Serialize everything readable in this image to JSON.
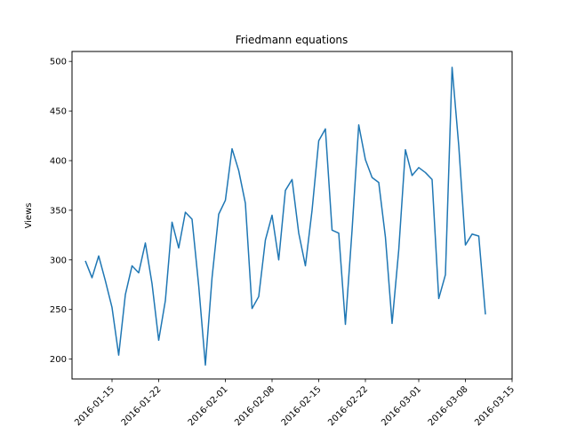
{
  "chart_data": {
    "type": "line",
    "title": "Friedmann equations",
    "xlabel": "",
    "ylabel": "Views",
    "x_start": "2016-01-11",
    "x_end": "2016-03-13",
    "xlim": [
      "2016-01-09",
      "2016-03-15"
    ],
    "ylim": [
      180,
      510
    ],
    "y_ticks": [
      200,
      250,
      300,
      350,
      400,
      450,
      500
    ],
    "x_ticks": [
      "2016-01-15",
      "2016-01-22",
      "2016-02-01",
      "2016-02-08",
      "2016-02-15",
      "2016-02-22",
      "2016-03-01",
      "2016-03-08",
      "2016-03-15"
    ],
    "grid": false,
    "series": [
      {
        "name": "",
        "color": "#1f77b4",
        "values": [
          299,
          282,
          304,
          279,
          252,
          204,
          265,
          294,
          287,
          317,
          276,
          219,
          259,
          338,
          312,
          348,
          341,
          274,
          194,
          282,
          346,
          360,
          412,
          390,
          357,
          251,
          263,
          320,
          345,
          300,
          370,
          381,
          327,
          294,
          350,
          420,
          432,
          330,
          327,
          235,
          330,
          436,
          401,
          383,
          378,
          323,
          236,
          310,
          411,
          385,
          393,
          388,
          381,
          261,
          285,
          494,
          415,
          315,
          326,
          324,
          245
        ]
      }
    ]
  }
}
